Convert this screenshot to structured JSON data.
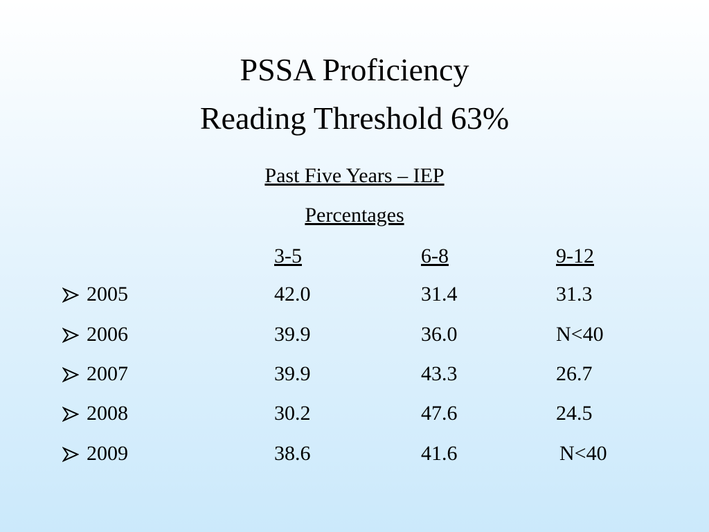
{
  "title": {
    "lines": [
      "PSSA Proficiency",
      "Reading Threshold 63%"
    ]
  },
  "subtitle": "Past Five Years – IEP",
  "caption": "Percentages",
  "table": {
    "columns": [
      "3-5",
      "6-8",
      "9-12"
    ],
    "rows": [
      [
        "2005",
        "42.0",
        "31.4",
        "31.3"
      ],
      [
        "2006",
        "39.9",
        "36.0",
        "N<40"
      ],
      [
        "2007",
        "39.9",
        "43.3",
        "26.7"
      ],
      [
        "2008",
        "30.2",
        "47.6",
        "24.5"
      ],
      [
        "2009",
        "38.6",
        "41.6",
        "N<40"
      ]
    ]
  }
}
